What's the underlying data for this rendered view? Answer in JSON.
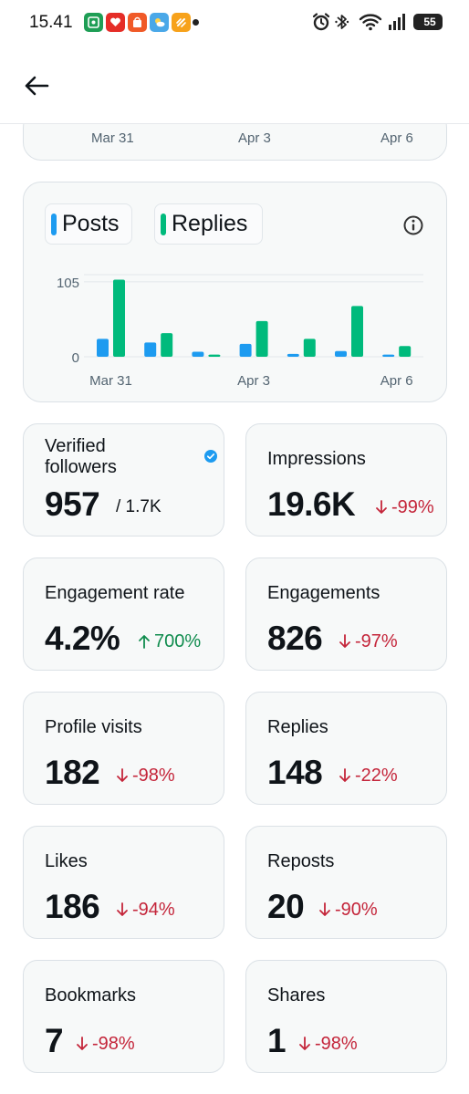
{
  "status_bar": {
    "time": "15.41",
    "battery": "55"
  },
  "top_chart_axis": {
    "labels": [
      "Mar 31",
      "Apr 3",
      "Apr 6"
    ]
  },
  "chart_data": {
    "type": "bar",
    "categories": [
      "Mar 31",
      "Apr 1",
      "Apr 2",
      "Apr 3",
      "Apr 4",
      "Apr 5",
      "Apr 6"
    ],
    "x_tick_labels": [
      "Mar 31",
      "Apr 3",
      "Apr 6"
    ],
    "y_tick_labels": [
      "105",
      "0"
    ],
    "ylim": [
      0,
      115
    ],
    "grid": true,
    "legend_position": "top-left",
    "series": [
      {
        "name": "Posts",
        "color": "#1d9bf0",
        "values": [
          25,
          20,
          7,
          18,
          4,
          8,
          3
        ]
      },
      {
        "name": "Replies",
        "color": "#00ba7c",
        "values": [
          108,
          33,
          3,
          50,
          25,
          71,
          15
        ]
      }
    ]
  },
  "stats": [
    {
      "label": "Verified followers",
      "value": "957",
      "suffix": "/ 1.7K",
      "verified": true
    },
    {
      "label": "Impressions",
      "value": "19.6K",
      "change": "-99%",
      "direction": "down"
    },
    {
      "label": "Engagement rate",
      "value": "4.2%",
      "change": "700%",
      "direction": "up"
    },
    {
      "label": "Engagements",
      "value": "826",
      "change": "-97%",
      "direction": "down"
    },
    {
      "label": "Profile visits",
      "value": "182",
      "change": "-98%",
      "direction": "down"
    },
    {
      "label": "Replies",
      "value": "148",
      "change": "-22%",
      "direction": "down"
    },
    {
      "label": "Likes",
      "value": "186",
      "change": "-94%",
      "direction": "down"
    },
    {
      "label": "Reposts",
      "value": "20",
      "change": "-90%",
      "direction": "down"
    },
    {
      "label": "Bookmarks",
      "value": "7",
      "change": "-98%",
      "direction": "down"
    },
    {
      "label": "Shares",
      "value": "1",
      "change": "-98%",
      "direction": "down"
    }
  ]
}
